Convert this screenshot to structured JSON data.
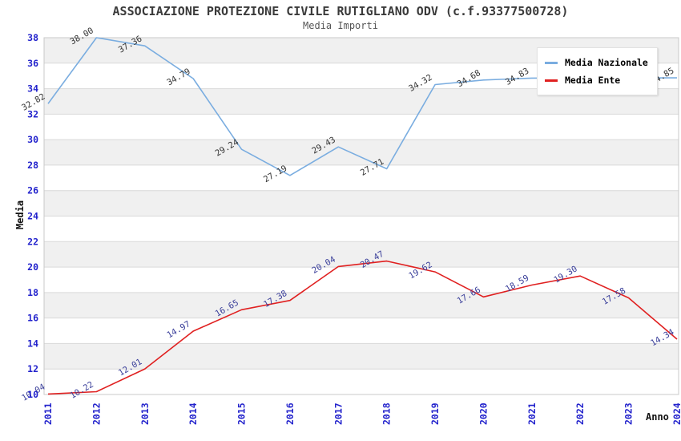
{
  "header": {
    "title": "ASSOCIAZIONE PROTEZIONE CIVILE RUTIGLIANO ODV (c.f.93377500728)",
    "subtitle": "Media Importi"
  },
  "legend": {
    "items": [
      {
        "label": "Media Nazionale",
        "color": "#7aade0"
      },
      {
        "label": "Media Ente",
        "color": "#e02020"
      }
    ]
  },
  "chart_data": {
    "type": "line",
    "title": "ASSOCIAZIONE PROTEZIONE CIVILE RUTIGLIANO ODV (c.f.93377500728)",
    "subtitle": "Media Importi",
    "xlabel": "Anno",
    "ylabel": "Media",
    "categories": [
      "2011",
      "2012",
      "2013",
      "2014",
      "2015",
      "2016",
      "2017",
      "2018",
      "2019",
      "2020",
      "2021",
      "2022",
      "2023",
      "2024"
    ],
    "series": [
      {
        "name": "Media Nazionale",
        "color": "#7aade0",
        "label_color": "#333333",
        "values": [
          32.82,
          38.0,
          37.36,
          34.79,
          29.24,
          27.19,
          29.43,
          27.71,
          34.32,
          34.68,
          34.83,
          34.84,
          34.84,
          34.85
        ]
      },
      {
        "name": "Media Ente",
        "color": "#e02020",
        "label_color": "#383d99",
        "values": [
          10.04,
          10.22,
          12.01,
          14.97,
          16.65,
          17.38,
          20.04,
          20.47,
          19.62,
          17.66,
          18.59,
          19.3,
          17.58,
          14.34
        ]
      }
    ],
    "ylim": [
      10,
      38
    ],
    "ytick_step": 2,
    "grid": "horizontal-bands",
    "band_colors": [
      "#f0f0f0",
      "#ffffff"
    ],
    "tick_label_color": "#2222cc",
    "legend_position": "top-right"
  }
}
